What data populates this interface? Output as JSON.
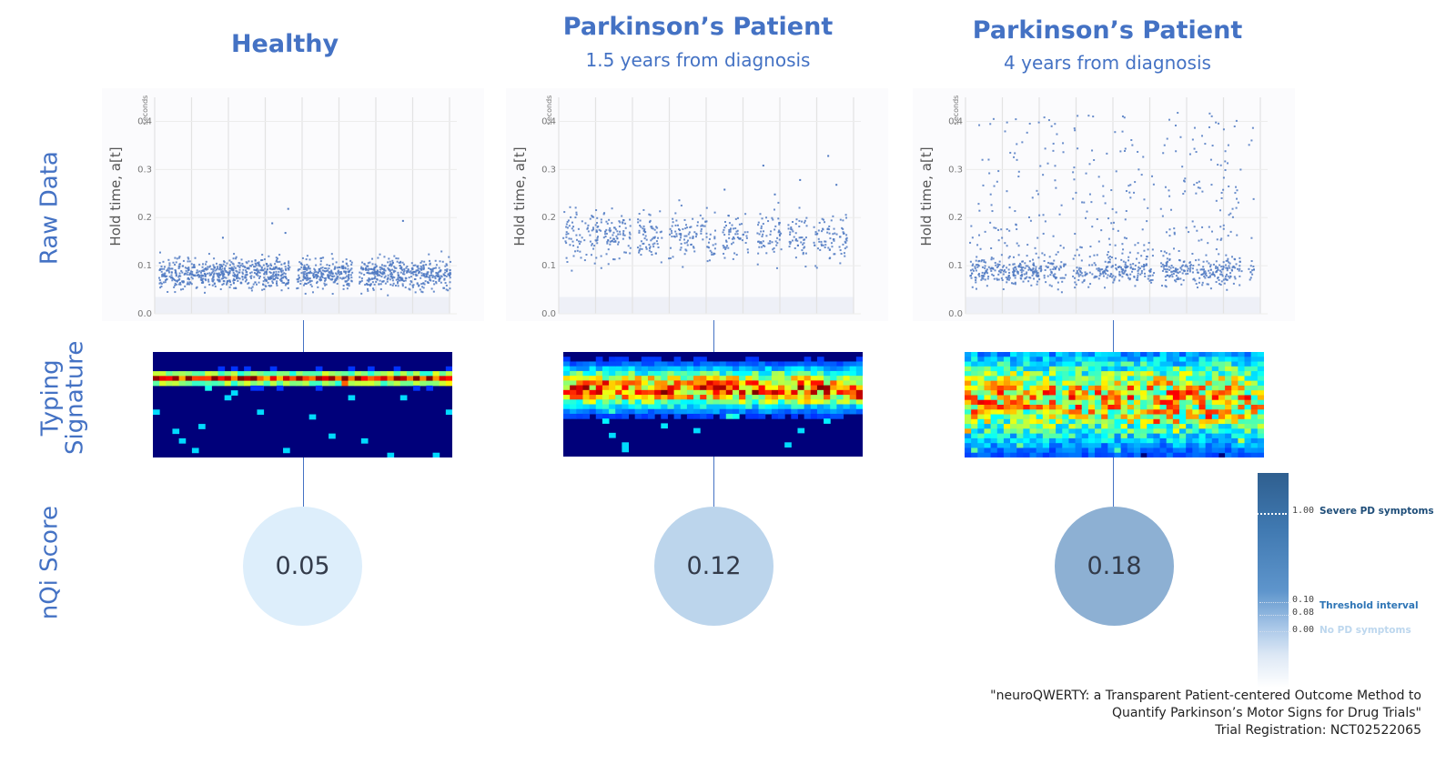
{
  "columns": [
    {
      "title": "Healthy",
      "subtitle": "",
      "score": "0.05",
      "score_color": "#ddeefb"
    },
    {
      "title": "Parkinson’s Patient",
      "subtitle": "1.5 years from diagnosis",
      "score": "0.12",
      "score_color": "#bcd5ec"
    },
    {
      "title": "Parkinson’s Patient",
      "subtitle": "4 years from diagnosis",
      "score": "0.18",
      "score_color": "#8db0d3"
    }
  ],
  "row_labels": {
    "raw": "Raw Data",
    "typing_1": "Typing",
    "typing_2": "Signature",
    "score": "nQi Score"
  },
  "chart_data": [
    {
      "type": "scatter",
      "title": "Healthy",
      "ylabel": "Hold time, a[t]",
      "yunit": "seconds",
      "ylim": [
        0,
        0.45
      ],
      "yticks": [
        "0.0",
        "0.1",
        "0.2",
        "0.3",
        "0.4"
      ],
      "grid": true,
      "distribution": {
        "center": 0.085,
        "spread": 0.015,
        "count": 1300,
        "outliers": [
          0.195,
          0.19,
          0.22,
          0.17,
          0.16
        ]
      }
    },
    {
      "type": "scatter",
      "title": "Parkinson’s Patient 1.5 years from diagnosis",
      "ylabel": "Hold time, a[t]",
      "yunit": "seconds",
      "ylim": [
        0,
        0.45
      ],
      "yticks": [
        "0.0",
        "0.1",
        "0.2",
        "0.3",
        "0.4"
      ],
      "grid": true,
      "distribution": {
        "center": 0.165,
        "spread": 0.025,
        "count": 600,
        "outliers": [
          0.33,
          0.31,
          0.28,
          0.27,
          0.26,
          0.25
        ]
      }
    },
    {
      "type": "scatter",
      "title": "Parkinson’s Patient 4 years from diagnosis",
      "ylabel": "Hold time, a[t]",
      "yunit": "seconds",
      "ylim": [
        0,
        0.45
      ],
      "yticks": [
        "0.0",
        "0.1",
        "0.2",
        "0.3",
        "0.4"
      ],
      "grid": true,
      "distribution": {
        "center": 0.09,
        "spread": 0.015,
        "count": 700,
        "upper_spread": [
          0.12,
          0.42
        ],
        "upper_count": 300
      }
    },
    {
      "type": "heatmap",
      "title": "Typing Signature",
      "colormap": "jet",
      "panels": [
        {
          "band_center": 0.25,
          "band_width": 0.08
        },
        {
          "band_center": 0.35,
          "band_width": 0.22
        },
        {
          "band_center": 0.45,
          "band_width": 0.45
        }
      ]
    }
  ],
  "legend": {
    "ticks": [
      {
        "value": "1.00",
        "label": "Severe PD symptoms",
        "color": "#1f4e79"
      },
      {
        "value": "0.10",
        "label": "Threshold interval",
        "color": "#2e75b6"
      },
      {
        "value": "0.08",
        "label": "",
        "color": "#2e75b6"
      },
      {
        "value": "0.00",
        "label": "No PD symptoms",
        "color": "#bdd7ee"
      }
    ]
  },
  "citation": {
    "line1": "\"neuroQWERTY: a Transparent Patient-centered Outcome Method to",
    "line2": "Quantify Parkinson’s Motor Signs for Drug Trials\"",
    "line3": "Trial Registration: NCT02522065"
  }
}
